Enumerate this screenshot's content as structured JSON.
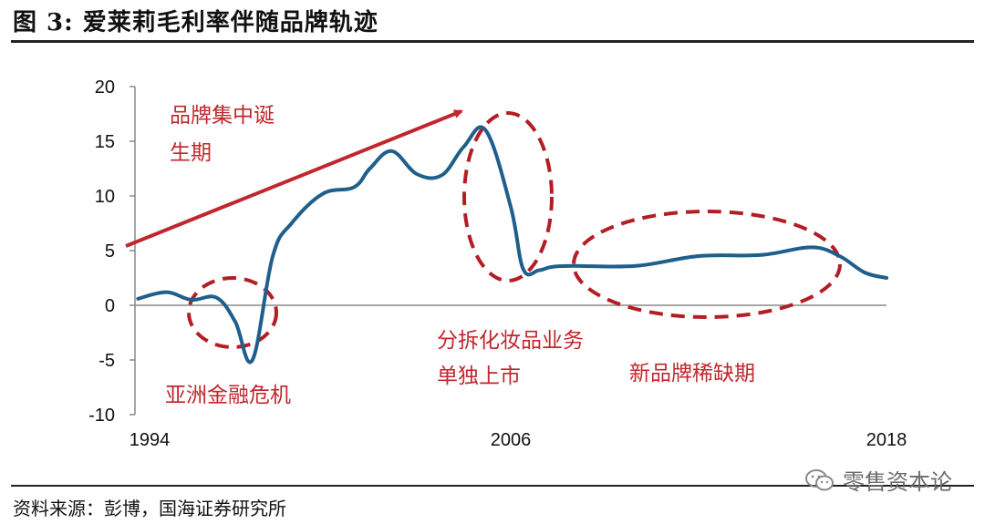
{
  "header": {
    "title": "图 3:   爱莱莉毛利率伴随品牌轨迹"
  },
  "footer": {
    "source": "资料来源：彭博，国海证券研究所",
    "watermark": "零售资本论",
    "watermark_icon": "wechat-icon"
  },
  "chart_data": {
    "type": "line",
    "title": "",
    "xlabel": "",
    "ylabel": "",
    "x_ticks": [
      "1994",
      "2006",
      "2018"
    ],
    "x_range": [
      1994,
      2018
    ],
    "ylim": [
      -10,
      20
    ],
    "y_ticks": [
      20,
      15,
      10,
      5,
      0,
      -5,
      -10
    ],
    "grid": false,
    "legend": "none",
    "line_color": "#1f5f8b",
    "annotation_color": "#c0272d",
    "series": [
      {
        "x": [
          1994.1,
          1995.0,
          1995.8,
          1996.6,
          1997.2,
          1997.75,
          1998.4,
          1999.0,
          2000.0,
          2001.0,
          2001.5,
          2002.2,
          2003.0,
          2003.8,
          2004.5,
          2005.2,
          2006.0,
          2006.4,
          2006.9,
          2007.3,
          2008.0,
          2010.0,
          2012.0,
          2014.0,
          2015.6,
          2016.5,
          2017.3,
          2018.0
        ],
        "values": [
          0.6,
          1.2,
          0.5,
          0.7,
          -1.5,
          -5.0,
          4.5,
          7.5,
          10.2,
          10.8,
          12.5,
          14.1,
          12.0,
          11.9,
          14.5,
          16.0,
          9.0,
          3.3,
          3.2,
          3.5,
          3.6,
          3.6,
          4.5,
          4.6,
          5.3,
          4.5,
          3.0,
          2.5
        ]
      }
    ],
    "annotations": [
      {
        "label": "品牌集中诞",
        "label2": "生期"
      },
      {
        "label": "亚洲金融危机"
      },
      {
        "label": "分拆化妆品业务",
        "label2": "单独上市"
      },
      {
        "label": "新品牌稀缺期"
      }
    ]
  }
}
